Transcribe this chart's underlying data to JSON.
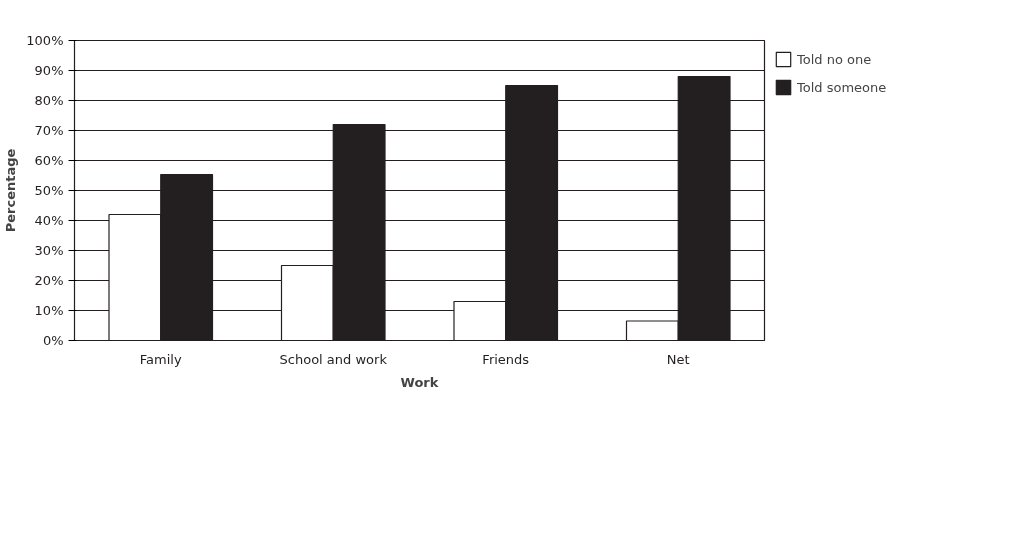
{
  "chart_data": {
    "type": "bar",
    "xlabel": "Work",
    "ylabel": "Percentage",
    "categories": [
      "Family",
      "School and work",
      "Friends",
      "Net"
    ],
    "series": [
      {
        "name": "Told no one",
        "color": "#ffffff",
        "values": [
          42,
          25,
          13,
          6.5
        ]
      },
      {
        "name": "Told someone",
        "color": "#231f20",
        "values": [
          55.3,
          72,
          85,
          88
        ]
      }
    ],
    "ylim": [
      0,
      100
    ],
    "yticks": [
      {
        "value": 0,
        "label": "0%"
      },
      {
        "value": 10,
        "label": "10%"
      },
      {
        "value": 20,
        "label": "20%"
      },
      {
        "value": 30,
        "label": "30%"
      },
      {
        "value": 40,
        "label": "40%"
      },
      {
        "value": 50,
        "label": "50%"
      },
      {
        "value": 60,
        "label": "60%"
      },
      {
        "value": 70,
        "label": "70%"
      },
      {
        "value": 80,
        "label": "80%"
      },
      {
        "value": 90,
        "label": "90%"
      },
      {
        "value": 100,
        "label": "100%"
      }
    ],
    "grid": "y",
    "legend": "right"
  }
}
